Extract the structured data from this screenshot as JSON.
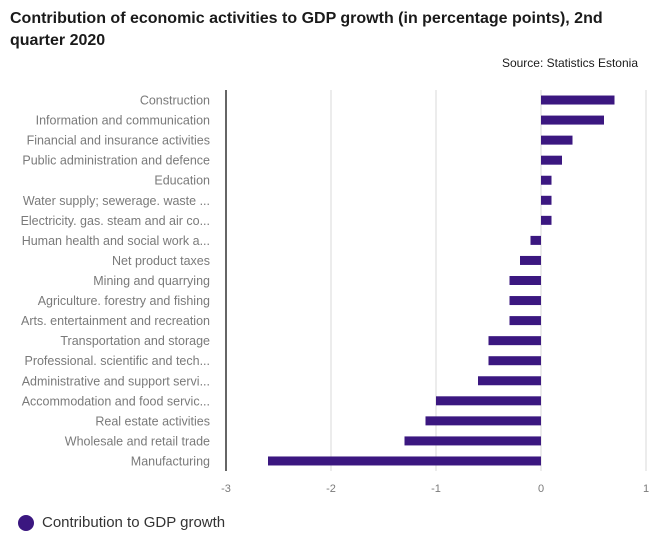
{
  "title": "Contribution of economic activities to GDP growth (in percentage points), 2nd quarter 2020",
  "source": "Source: Statistics Estonia",
  "colors": {
    "bar": "#3b1780",
    "grid": "#d9d9d9",
    "axis": "#333333",
    "label": "#7a7a7a"
  },
  "chart_data": {
    "type": "bar",
    "orientation": "horizontal",
    "categories": [
      "Construction",
      "Information and communication",
      "Financial and insurance activities",
      "Public administration and defence",
      "Education",
      "Water supply; sewerage. waste ...",
      "Electricity. gas. steam and air co...",
      "Human health and social work a...",
      "Net product taxes",
      "Mining and quarrying",
      "Agriculture. forestry and fishing",
      "Arts. entertainment and recreation",
      "Transportation and storage",
      "Professional. scientific and tech...",
      "Administrative and support servi...",
      "Accommodation and food servic...",
      "Real estate activities",
      "Wholesale and retail trade",
      "Manufacturing"
    ],
    "series": [
      {
        "name": "Contribution to GDP growth",
        "values": [
          0.7,
          0.6,
          0.3,
          0.2,
          0.1,
          0.1,
          0.1,
          -0.1,
          -0.2,
          -0.3,
          -0.3,
          -0.3,
          -0.5,
          -0.5,
          -0.6,
          -1.0,
          -1.1,
          -1.3,
          -2.6
        ]
      }
    ],
    "xlim": [
      -3,
      1
    ],
    "xticks": [
      "-3",
      "-2",
      "-1",
      "0",
      "1"
    ],
    "grid": true,
    "legend_position": "bottom-left"
  },
  "legend": {
    "label": "Contribution to GDP growth"
  }
}
